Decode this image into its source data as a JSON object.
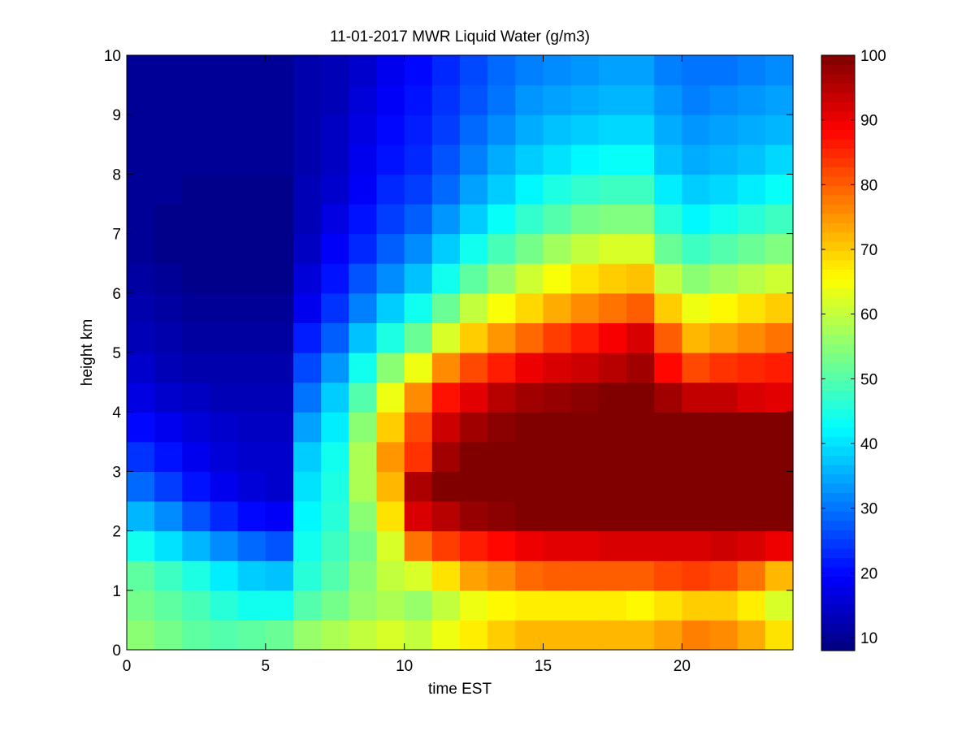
{
  "chart_data": {
    "type": "heatmap",
    "title": "11-01-2017 MWR Liquid Water (g/m3)",
    "xlabel": "time EST",
    "ylabel": "height km",
    "xlim": [
      0,
      24
    ],
    "ylim": [
      0,
      10
    ],
    "x_ticks": [
      "0",
      "5",
      "10",
      "15",
      "20"
    ],
    "y_ticks": [
      "0",
      "1",
      "2",
      "3",
      "4",
      "5",
      "6",
      "7",
      "8",
      "9",
      "10"
    ],
    "colorbar": {
      "colormap": "jet",
      "range": [
        8,
        100
      ],
      "ticks": [
        "10",
        "20",
        "30",
        "40",
        "50",
        "60",
        "70",
        "80",
        "90",
        "100"
      ]
    },
    "grid": false,
    "x": [
      0,
      1,
      2,
      3,
      4,
      5,
      6,
      7,
      8,
      9,
      10,
      11,
      12,
      13,
      14,
      15,
      16,
      17,
      18,
      19,
      20,
      21,
      22,
      23
    ],
    "y": [
      0.0,
      0.5,
      1.0,
      1.5,
      2.0,
      2.5,
      3.0,
      3.5,
      4.0,
      4.5,
      5.0,
      5.5,
      6.0,
      6.5,
      7.0,
      7.5,
      8.0,
      8.5,
      9.0,
      9.5
    ],
    "z": [
      [
        55,
        53,
        51,
        50,
        51,
        52,
        56,
        58,
        60,
        62,
        60,
        64,
        67,
        70,
        72,
        72,
        72,
        72,
        72,
        74,
        77,
        76,
        73,
        68
      ],
      [
        53,
        51,
        49,
        46,
        44,
        44,
        50,
        53,
        56,
        58,
        56,
        60,
        64,
        66,
        67,
        67,
        67,
        67,
        66,
        68,
        70,
        70,
        67,
        62
      ],
      [
        51,
        48,
        45,
        41,
        38,
        37,
        46,
        50,
        55,
        60,
        62,
        68,
        74,
        76,
        79,
        80,
        80,
        80,
        80,
        82,
        83,
        82,
        78,
        72
      ],
      [
        44,
        40,
        36,
        32,
        29,
        27,
        44,
        48,
        53,
        62,
        78,
        83,
        86,
        88,
        90,
        91,
        91,
        92,
        92,
        92,
        92,
        93,
        92,
        90
      ],
      [
        36,
        32,
        27,
        23,
        20,
        19,
        42,
        46,
        55,
        68,
        92,
        95,
        98,
        99,
        100,
        100,
        100,
        100,
        100,
        100,
        100,
        100,
        100,
        100
      ],
      [
        29,
        25,
        21,
        18,
        16,
        15,
        40,
        45,
        58,
        72,
        96,
        100,
        100,
        100,
        100,
        100,
        100,
        100,
        100,
        100,
        100,
        100,
        100,
        100
      ],
      [
        24,
        21,
        18,
        16,
        15,
        15,
        38,
        44,
        58,
        75,
        84,
        97,
        100,
        100,
        100,
        100,
        100,
        100,
        100,
        100,
        100,
        100,
        100,
        100
      ],
      [
        20,
        18,
        16,
        15,
        14,
        14,
        34,
        41,
        55,
        70,
        82,
        93,
        97,
        99,
        100,
        100,
        100,
        100,
        100,
        100,
        100,
        100,
        100,
        100
      ],
      [
        17,
        15,
        14,
        13,
        13,
        13,
        30,
        38,
        50,
        64,
        76,
        87,
        91,
        95,
        97,
        98,
        99,
        100,
        100,
        97,
        94,
        94,
        92,
        91
      ],
      [
        15,
        13,
        12,
        12,
        12,
        12,
        26,
        33,
        44,
        55,
        64,
        76,
        82,
        86,
        90,
        92,
        93,
        95,
        97,
        88,
        82,
        84,
        85,
        86
      ],
      [
        13,
        12,
        11,
        11,
        11,
        11,
        22,
        28,
        37,
        45,
        52,
        62,
        70,
        75,
        79,
        83,
        86,
        89,
        92,
        80,
        72,
        74,
        76,
        78
      ],
      [
        12,
        11,
        10,
        10,
        10,
        10,
        18,
        24,
        31,
        38,
        44,
        52,
        60,
        65,
        69,
        73,
        76,
        78,
        80,
        70,
        64,
        66,
        68,
        70
      ],
      [
        11,
        10,
        9,
        9,
        9,
        9,
        16,
        21,
        27,
        32,
        37,
        44,
        51,
        56,
        61,
        65,
        68,
        70,
        71,
        60,
        55,
        57,
        59,
        61
      ],
      [
        10,
        9,
        9,
        9,
        9,
        9,
        14,
        19,
        23,
        28,
        32,
        38,
        44,
        49,
        53,
        57,
        60,
        62,
        62,
        52,
        48,
        50,
        52,
        54
      ],
      [
        10,
        9,
        9,
        9,
        9,
        9,
        13,
        17,
        21,
        25,
        28,
        33,
        38,
        43,
        47,
        50,
        53,
        54,
        54,
        46,
        42,
        44,
        46,
        48
      ],
      [
        10,
        10,
        9,
        9,
        9,
        9,
        13,
        15,
        19,
        23,
        25,
        29,
        34,
        38,
        42,
        45,
        47,
        48,
        48,
        41,
        38,
        39,
        41,
        43
      ],
      [
        10,
        10,
        10,
        10,
        10,
        10,
        12,
        14,
        18,
        21,
        23,
        27,
        31,
        35,
        38,
        40,
        42,
        43,
        43,
        37,
        35,
        36,
        37,
        39
      ],
      [
        10,
        10,
        10,
        10,
        10,
        10,
        12,
        14,
        17,
        20,
        22,
        25,
        29,
        32,
        35,
        37,
        38,
        39,
        39,
        35,
        33,
        34,
        35,
        36
      ],
      [
        10,
        10,
        10,
        10,
        10,
        10,
        12,
        13,
        16,
        19,
        21,
        24,
        27,
        30,
        33,
        34,
        35,
        36,
        36,
        33,
        31,
        32,
        33,
        34
      ],
      [
        10,
        10,
        10,
        10,
        10,
        10,
        12,
        13,
        15,
        18,
        20,
        23,
        26,
        29,
        31,
        32,
        33,
        34,
        34,
        31,
        30,
        30,
        31,
        32
      ]
    ]
  }
}
